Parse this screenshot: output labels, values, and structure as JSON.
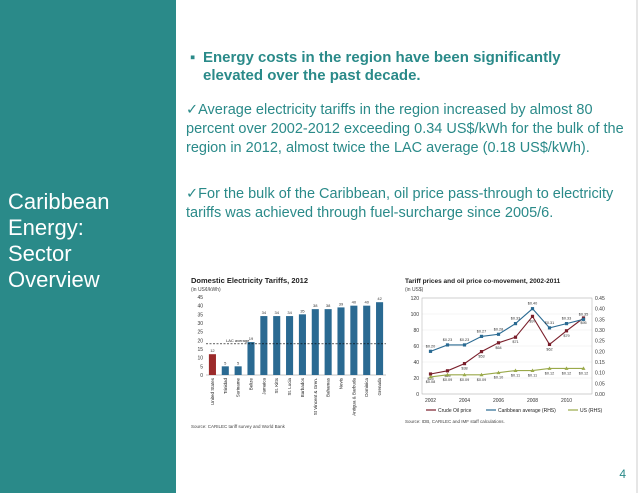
{
  "sidebar": {
    "title_line1": "Caribbean",
    "title_line2": "Energy:",
    "title_line3": "Sector",
    "title_line4": "Overview",
    "bg_color": "#2a8a89"
  },
  "content": {
    "headline": "Energy costs in the region have been significantly elevated over the past decade.",
    "paragraph1": "✓Average electricity tariffs in the region increased by almost 80 percent over 2002-2012 exceeding 0.34 US$/kWh for the bulk of the region in 2012,  almost twice the LAC average (0.18 US$/kWh).",
    "paragraph2": "✓For the bulk of the Caribbean, oil price pass-through to electricity tariffs was achieved through fuel-surcharge since 2005/6."
  },
  "page_number": "4",
  "chart_data": [
    {
      "type": "bar",
      "title": "Domestic  Electricity Tariffs, 2012",
      "subtitle": "(in US¢/kWh)",
      "source": "Source: CARILEC tariff survey and World Bank",
      "categories": [
        "United States",
        "Trinidad",
        "Suriname",
        "Belize",
        "Jamaica",
        "St. Kitts",
        "St. Lucia",
        "Barbados",
        "St Vincent & Gren.",
        "Bahamas",
        "Nevis",
        "Antigua & Barbuda",
        "Dominica",
        "Grenada"
      ],
      "values": [
        12,
        5,
        5,
        19,
        34,
        34,
        34,
        35,
        38,
        38,
        39,
        40,
        40,
        42
      ],
      "value_labels": [
        "12",
        "5",
        "5",
        "19",
        "34",
        "34",
        "34",
        "35",
        "38",
        "38",
        "39",
        "40",
        "40",
        "42"
      ],
      "ylim": [
        0,
        45
      ],
      "yticks": [
        "0",
        "5",
        "10",
        "15",
        "20",
        "25",
        "30",
        "35",
        "40",
        "45"
      ],
      "reference_label": "LAC average",
      "reference_value": 18,
      "colors": {
        "bar": "#2a6a92",
        "highlight": "#9b2a2a",
        "reference": "#000000"
      }
    },
    {
      "type": "line",
      "title": "Tariff prices and oil price co-movement, 2002-2011",
      "subtitle": "(in US$)",
      "source": "Source: IDB, CARILEC and IMF staff calculations.",
      "x": [
        2002,
        2003,
        2004,
        2005,
        2006,
        2007,
        2008,
        2009,
        2010,
        2011
      ],
      "xticks": [
        "2002",
        "2004",
        "2006",
        "2008",
        "2010"
      ],
      "yticks_left": [
        "0",
        "20",
        "40",
        "60",
        "80",
        "100",
        "120"
      ],
      "yticks_right": [
        "0.00",
        "0.05",
        "0.10",
        "0.15",
        "0.20",
        "0.25",
        "0.30",
        "0.35",
        "0.40",
        "0.45"
      ],
      "ylim_left": [
        0,
        120
      ],
      "ylim_right": [
        0,
        0.45
      ],
      "series": [
        {
          "name": "Crude Oil price",
          "axis": "left",
          "color": "#7a1f2b",
          "values": [
            25,
            29,
            38,
            53,
            64,
            71,
            97,
            62,
            79,
            95
          ],
          "labels": [
            "$25",
            "$29",
            "$38",
            "$53",
            "$64",
            "$71",
            "$97",
            "$62",
            "$79",
            "$95"
          ]
        },
        {
          "name": "Caribbean average (RHS)",
          "axis": "right",
          "color": "#2a6a92",
          "values": [
            0.2,
            0.23,
            0.23,
            0.27,
            0.28,
            0.33,
            0.4,
            0.31,
            0.33,
            0.35
          ],
          "labels": [
            "$0.20",
            "$0.23",
            "$0.23",
            "$0.27",
            "$0.28",
            "$0.33",
            "$0.40",
            "$0.31",
            "$0.33",
            "$0.35"
          ]
        },
        {
          "name": "US (RHS)",
          "axis": "right",
          "color": "#9aa94a",
          "values": [
            0.08,
            0.09,
            0.09,
            0.09,
            0.1,
            0.11,
            0.11,
            0.12,
            0.12,
            0.12
          ],
          "labels": [
            "$0.08",
            "$0.09",
            "$0.09",
            "$0.09",
            "$0.10",
            "$0.11",
            "$0.11",
            "$0.12",
            "$0.12",
            "$0.12"
          ]
        }
      ]
    }
  ]
}
